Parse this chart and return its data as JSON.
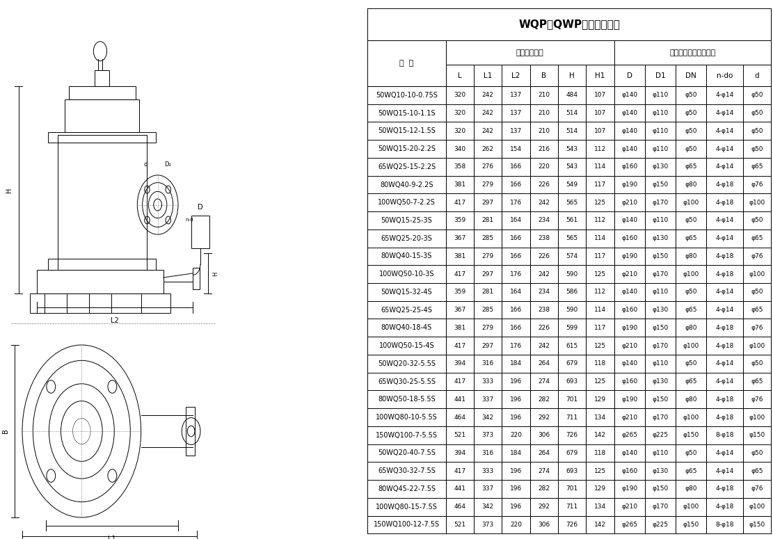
{
  "title": "WQP（QWP）安装尺寸表",
  "col_headers": [
    "型  号",
    "L",
    "L1",
    "L2",
    "B",
    "H",
    "H1",
    "D",
    "D1",
    "DN",
    "n-do",
    "d"
  ],
  "group_header1": "外形安装尺寸",
  "group_header2": "泵出口法兰及连接尺寸",
  "rows": [
    [
      "50WQ10-10-0.75S",
      "320",
      "242",
      "137",
      "210",
      "484",
      "107",
      "φ140",
      "φ110",
      "φ50",
      "4-φ14",
      "φ50"
    ],
    [
      "50WQ15-10-1.1S",
      "320",
      "242",
      "137",
      "210",
      "514",
      "107",
      "φ140",
      "φ110",
      "φ50",
      "4-φ14",
      "φ50"
    ],
    [
      "50WQ15-12-1.5S",
      "320",
      "242",
      "137",
      "210",
      "514",
      "107",
      "φ140",
      "φ110",
      "φ50",
      "4-φ14",
      "φ50"
    ],
    [
      "50WQ15-20-2.2S",
      "340",
      "262",
      "154",
      "216",
      "543",
      "112",
      "φ140",
      "φ110",
      "φ50",
      "4-φ14",
      "φ50"
    ],
    [
      "65WQ25-15-2.2S",
      "358",
      "276",
      "166",
      "220",
      "543",
      "114",
      "φ160",
      "φ130",
      "φ65",
      "4-φ14",
      "φ65"
    ],
    [
      "80WQ40-9-2.2S",
      "381",
      "279",
      "166",
      "226",
      "549",
      "117",
      "φ190",
      "φ150",
      "φ80",
      "4-φ18",
      "φ76"
    ],
    [
      "100WQ50-7-2.2S",
      "417",
      "297",
      "176",
      "242",
      "565",
      "125",
      "φ210",
      "φ170",
      "φ100",
      "4-φ18",
      "φ100"
    ],
    [
      "50WQ15-25-3S",
      "359",
      "281",
      "164",
      "234",
      "561",
      "112",
      "φ140",
      "φ110",
      "φ50",
      "4-φ14",
      "φ50"
    ],
    [
      "65WQ25-20-3S",
      "367",
      "285",
      "166",
      "238",
      "565",
      "114",
      "φ160",
      "φ130",
      "φ65",
      "4-φ14",
      "φ65"
    ],
    [
      "80WQ40-15-3S",
      "381",
      "279",
      "166",
      "226",
      "574",
      "117",
      "φ190",
      "φ150",
      "φ80",
      "4-φ18",
      "φ76"
    ],
    [
      "100WQ50-10-3S",
      "417",
      "297",
      "176",
      "242",
      "590",
      "125",
      "φ210",
      "φ170",
      "φ100",
      "4-φ18",
      "φ100"
    ],
    [
      "50WQ15-32-4S",
      "359",
      "281",
      "164",
      "234",
      "586",
      "112",
      "φ140",
      "φ110",
      "φ50",
      "4-φ14",
      "φ50"
    ],
    [
      "65WQ25-25-4S",
      "367",
      "285",
      "166",
      "238",
      "590",
      "114",
      "φ160",
      "φ130",
      "φ65",
      "4-φ14",
      "φ65"
    ],
    [
      "80WQ40-18-4S",
      "381",
      "279",
      "166",
      "226",
      "599",
      "117",
      "φ190",
      "φ150",
      "φ80",
      "4-φ18",
      "φ76"
    ],
    [
      "100WQ50-15-4S",
      "417",
      "297",
      "176",
      "242",
      "615",
      "125",
      "φ210",
      "φ170",
      "φ100",
      "4-φ18",
      "φ100"
    ],
    [
      "50WQ20-32-5.5S",
      "394",
      "316",
      "184",
      "264",
      "679",
      "118",
      "φ140",
      "φ110",
      "φ50",
      "4-φ14",
      "φ50"
    ],
    [
      "65WQ30-25-5.5S",
      "417",
      "333",
      "196",
      "274",
      "693",
      "125",
      "φ160",
      "φ130",
      "φ65",
      "4-φ14",
      "φ65"
    ],
    [
      "80WQ50-18-5.5S",
      "441",
      "337",
      "196",
      "282",
      "701",
      "129",
      "φ190",
      "φ150",
      "φ80",
      "4-φ18",
      "φ76"
    ],
    [
      "100WQ80-10-5.5S",
      "464",
      "342",
      "196",
      "292",
      "711",
      "134",
      "φ210",
      "φ170",
      "φ100",
      "4-φ18",
      "φ100"
    ],
    [
      "150WQ100-7-5.5S",
      "521",
      "373",
      "220",
      "306",
      "726",
      "142",
      "φ265",
      "φ225",
      "φ150",
      "8-φ18",
      "φ150"
    ],
    [
      "50WQ20-40-7.5S",
      "394",
      "316",
      "184",
      "264",
      "679",
      "118",
      "φ140",
      "φ110",
      "φ50",
      "4-φ14",
      "φ50"
    ],
    [
      "65WQ30-32-7.5S",
      "417",
      "333",
      "196",
      "274",
      "693",
      "125",
      "φ160",
      "φ130",
      "φ65",
      "4-φ14",
      "φ65"
    ],
    [
      "80WQ45-22-7.5S",
      "441",
      "337",
      "196",
      "282",
      "701",
      "129",
      "φ190",
      "φ150",
      "φ80",
      "4-φ18",
      "φ76"
    ],
    [
      "100WQ80-15-7.5S",
      "464",
      "342",
      "196",
      "292",
      "711",
      "134",
      "φ210",
      "φ170",
      "φ100",
      "4-φ18",
      "φ100"
    ],
    [
      "150WQ100-12-7.5S",
      "521",
      "373",
      "220",
      "306",
      "726",
      "142",
      "φ265",
      "φ225",
      "φ150",
      "8-φ18",
      "φ150"
    ]
  ],
  "bg_color": "#ffffff",
  "line_color": "#000000",
  "text_color": "#000000",
  "drawing_bg": "#f0f0f0"
}
